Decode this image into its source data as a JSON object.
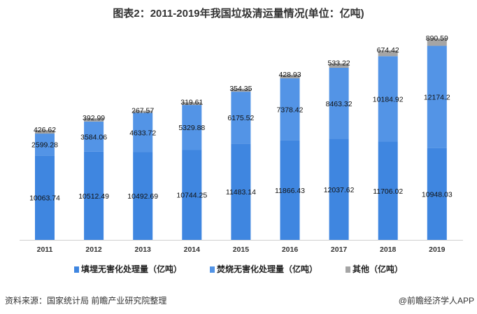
{
  "chart_data": {
    "type": "bar",
    "stacked": true,
    "title": "图表2：2011-2019年我国垃圾清运量情况(单位：亿吨)",
    "categories": [
      "2011",
      "2012",
      "2013",
      "2014",
      "2015",
      "2016",
      "2017",
      "2018",
      "2019"
    ],
    "series": [
      {
        "name": "填埋无害化处理量（亿吨）",
        "color": "#3f86e0",
        "values": [
          10063.74,
          10512.49,
          10492.69,
          10744.25,
          11483.14,
          11866.43,
          12037.62,
          11706.02,
          10948.03
        ]
      },
      {
        "name": "焚烧无害化处理量（亿吨）",
        "color": "#5394e6",
        "values": [
          2599.28,
          3584.06,
          4633.72,
          5329.88,
          6175.52,
          7378.42,
          8463.32,
          10184.92,
          12174.2
        ]
      },
      {
        "name": "其他（亿吨）",
        "color": "#a5a5a5",
        "values": [
          426.62,
          392.99,
          267.57,
          319.61,
          354.35,
          428.93,
          533.22,
          674.42,
          890.59
        ]
      }
    ],
    "ylim": [
      0,
      25000
    ],
    "grid": false,
    "legend_position": "bottom"
  },
  "footer": {
    "source": "资料来源：国家统计局 前瞻产业研究院整理",
    "brand": "@前瞻经济学人APP"
  }
}
